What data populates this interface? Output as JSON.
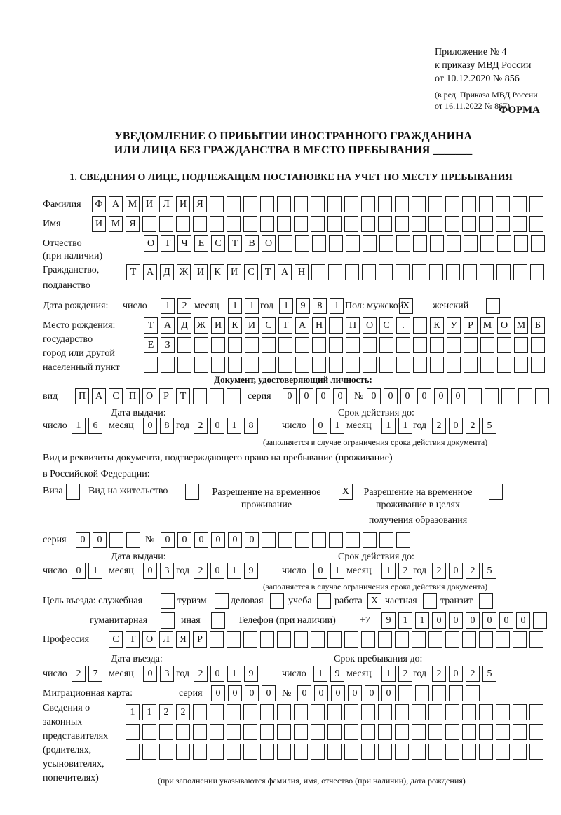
{
  "header": {
    "appendix": [
      "Приложение № 4",
      "к приказу МВД России",
      "от 10.12.2020 № 856"
    ],
    "amendment": [
      "(в ред. Приказа МВД России",
      "от 16.11.2022 № 867)"
    ],
    "form_label": "ФОРМА",
    "title": [
      "УВЕДОМЛЕНИЕ О ПРИБЫТИИ ИНОСТРАННОГО ГРАЖДАНИНА",
      "ИЛИ ЛИЦА БЕЗ ГРАЖДАНСТВА В МЕСТО ПРЕБЫВАНИЯ _______"
    ],
    "section1": "1. СВЕДЕНИЯ О ЛИЦЕ, ПОДЛЕЖАЩЕМ ПОСТАНОВКЕ НА УЧЕТ ПО МЕСТУ ПРЕБЫВАНИЯ"
  },
  "labels": {
    "surname": "Фамилия",
    "name": "Имя",
    "patronymic": "Отчество",
    "patronymic_note": "(при наличии)",
    "citizenship": "Гражданство,",
    "citizenship2": "подданство",
    "birth_date": "Дата рождения:",
    "day": "число",
    "month": "месяц",
    "year": "год",
    "sex": "Пол: мужской",
    "female": "женский",
    "birth_place": [
      "Место рождения:",
      "государство",
      "город или другой",
      "населенный пункт"
    ],
    "id_doc": "Документ, удостоверяющий личность:",
    "kind": "вид",
    "series": "серия",
    "number": "№",
    "issue_date": "Дата выдачи:",
    "valid_until": "Срок действия до:",
    "validity_note": "(заполняется в случае ограничения срока действия документа)",
    "right_doc": "Вид и реквизиты документа, подтверждающего право на пребывание (проживание)",
    "right_doc2": "в Российской Федерации:",
    "visa": "Виза",
    "residence": "Вид на жительство",
    "temp_residence": [
      "Разрешение на временное",
      "проживание"
    ],
    "temp_residence_edu": [
      "Разрешение на временное",
      "проживание в целях",
      "получения образования"
    ],
    "purpose": "Цель въезда: служебная",
    "tourism": "туризм",
    "business": "деловая",
    "study": "учеба",
    "work": "работа",
    "private": "частная",
    "transit": "транзит",
    "humanitarian": "гуманитарная",
    "other": "иная",
    "phone": "Телефон (при наличии)",
    "phone_prefix": "+7",
    "profession": "Профессия",
    "entry_date": "Дата въезда:",
    "stay_until": "Срок пребывания до:",
    "migration_card": "Миграционная карта:",
    "representatives": [
      "Сведения о",
      "законных",
      "представителях",
      "(родителях,",
      "усыновителях,",
      "попечителях)"
    ],
    "representatives_note": "(при заполнении указываются фамилия, имя, отчество (при наличии), дата рождения)"
  },
  "values": {
    "surname": "ФАМИЛИЯ",
    "name": "ИМЯ",
    "patronymic": "ОТЧЕСТВО",
    "citizenship": "ТАДЖИКИСТАН",
    "birth_day": "12",
    "birth_month": "11",
    "birth_year": "1981",
    "male": "X",
    "female": "",
    "birth_place": [
      "ТАДЖИКИСТАН ПОС. КУРМОМБ",
      "ЕЗ",
      ""
    ],
    "doc_kind": "ПАСПОРТ",
    "doc_series": "0000",
    "doc_number": "000000",
    "doc_issue": {
      "day": "16",
      "month": "08",
      "year": "2018"
    },
    "doc_valid": {
      "day": "01",
      "month": "11",
      "year": "2025"
    },
    "visa": "",
    "residence": "",
    "temp_residence": "X",
    "temp_residence_edu": "",
    "right_series": "00",
    "right_number": "000000",
    "right_issue": {
      "day": "01",
      "month": "03",
      "year": "2019"
    },
    "right_valid": {
      "day": "01",
      "month": "12",
      "year": "2025"
    },
    "purpose": {
      "official": "",
      "tourism": "",
      "business": "",
      "study": "",
      "work": "X",
      "private": "",
      "transit": "",
      "humanitarian": "",
      "other": ""
    },
    "phone": "911000000",
    "profession": "СТОЛЯР",
    "entry": {
      "day": "27",
      "month": "03",
      "year": "2019"
    },
    "stay_until": {
      "day": "19",
      "month": "12",
      "year": "2025"
    },
    "migration_series": "0000",
    "migration_number": "000000",
    "representatives": [
      "1122",
      "",
      ""
    ]
  }
}
